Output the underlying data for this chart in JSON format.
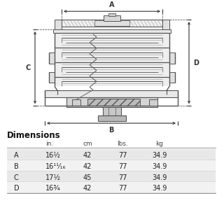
{
  "title": "Dimensions",
  "headers": [
    "",
    "in.",
    "cm",
    "lbs.",
    "kg"
  ],
  "rows": [
    [
      "A",
      "16½",
      "42",
      "77",
      "34.9"
    ],
    [
      "B",
      "16¹¹⁄₁₆",
      "42",
      "77",
      "34.9"
    ],
    [
      "C",
      "17½",
      "45",
      "77",
      "34.9"
    ],
    [
      "D",
      "16¾",
      "42",
      "77",
      "34.9"
    ]
  ],
  "bg_color": "#ffffff",
  "line_color": "#555555",
  "dim_color": "#333333",
  "gray_fill": "#cccccc",
  "dark_fill": "#888888",
  "light_fill": "#e8e8e8",
  "hatch_fill": "#bbbbbb"
}
